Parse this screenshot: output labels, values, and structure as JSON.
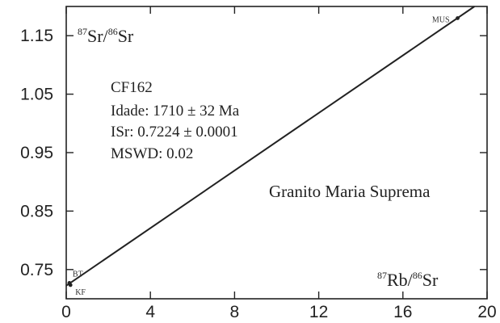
{
  "chart_data": {
    "type": "scatter",
    "title": "",
    "xlabel": "",
    "ylabel": "",
    "xlim": [
      0,
      20
    ],
    "ylim": [
      0.7,
      1.2
    ],
    "x_ticks": [
      "0",
      "4",
      "8",
      "12",
      "16",
      "20"
    ],
    "y_ticks": [
      "0.75",
      "0.85",
      "0.95",
      "1.05",
      "1.15"
    ],
    "x_tick_values": [
      0,
      4,
      8,
      12,
      16,
      20
    ],
    "y_tick_values": [
      0.75,
      0.85,
      0.95,
      1.05,
      1.15
    ],
    "grid": false,
    "y_axis_label": {
      "sup1": "87",
      "t1": "Sr/",
      "sup2": "86",
      "t2": "Sr"
    },
    "x_axis_label": {
      "sup1": "87",
      "t1": "Rb/",
      "sup2": "86",
      "t2": "Sr"
    },
    "isochron": {
      "x": [
        0,
        19.4
      ],
      "y": [
        0.7224,
        1.2
      ]
    },
    "points": [
      {
        "label": "BT",
        "x": 0.15,
        "y": 0.727
      },
      {
        "label": "KF",
        "x": 0.2,
        "y": 0.7235
      },
      {
        "label": "MUS",
        "x": 18.6,
        "y": 1.18
      }
    ],
    "stats": {
      "sample": "CF162",
      "age": "Idade: 1710 ± 32 Ma",
      "isr": "ISr: 0.7224 ± 0.0001",
      "mswd": "MSWD: 0.02"
    },
    "unit_name": "Granito Maria Suprema"
  }
}
